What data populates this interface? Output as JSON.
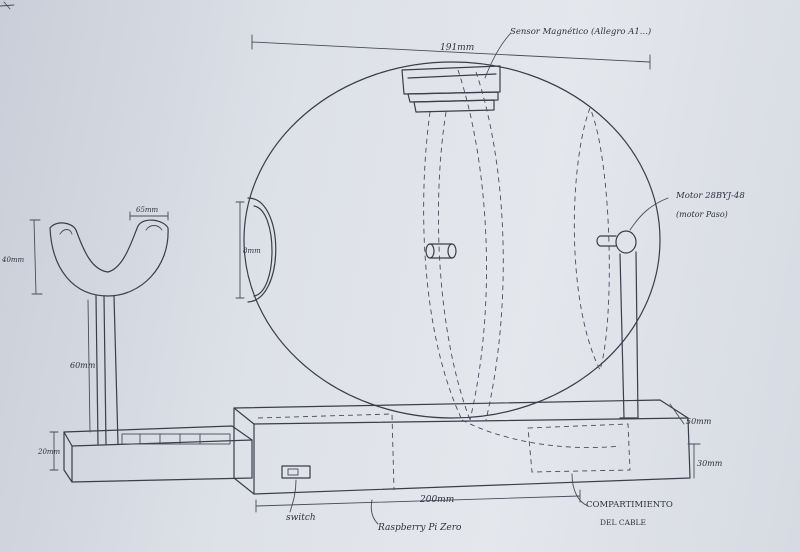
{
  "labels": {
    "top_width": "191mm",
    "sensor": "Sensor Magnético (Allegro A1...)",
    "motor": "Motor 28BYJ-48",
    "motor_sub": "(motor Paso)",
    "cup_width": "65mm",
    "cup_height": "40mm",
    "post_height": "60mm",
    "base_left_height": "20mm",
    "eyepiece": "8mm",
    "right_top": "50mm",
    "right_height": "30mm",
    "base_length": "200mm",
    "switch": "switch",
    "board": "Raspberry Pi Zero",
    "compartment_1": "COMPARTIMIENTO",
    "compartment_2": "DEL CABLE"
  }
}
